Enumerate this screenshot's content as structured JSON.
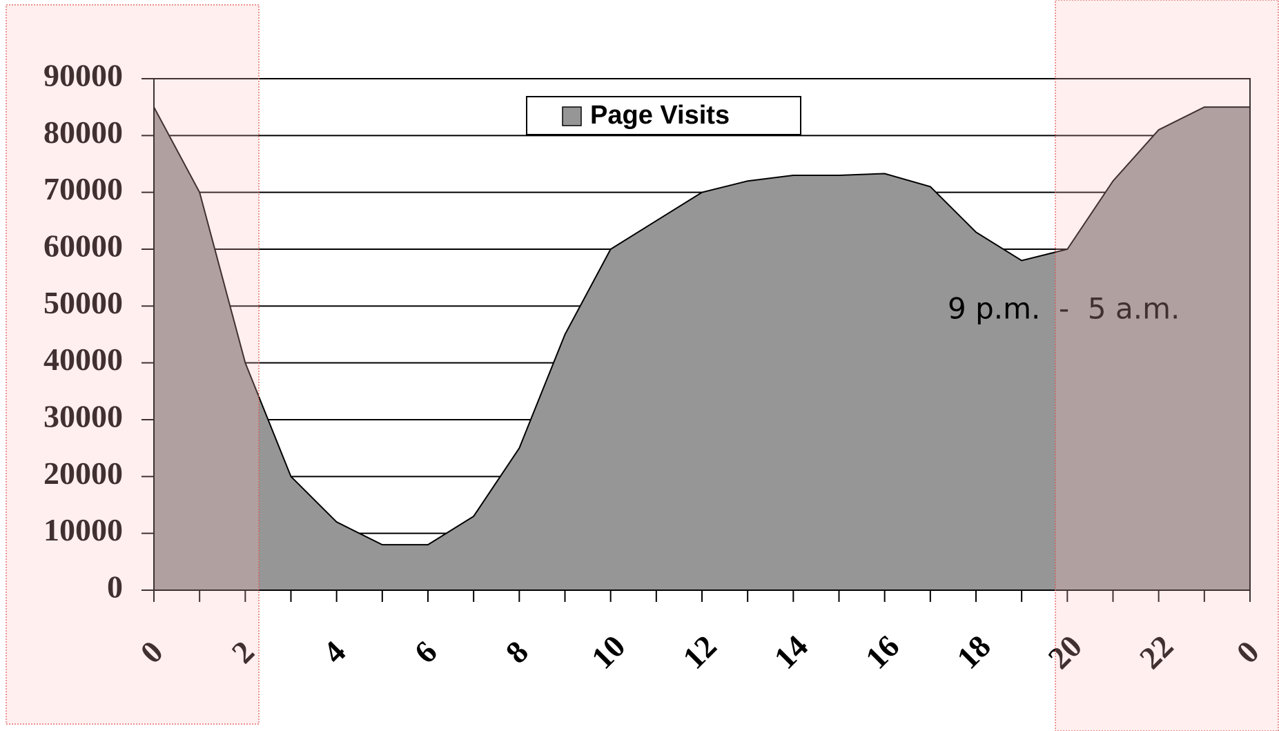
{
  "chart_data": {
    "type": "area",
    "categories": [
      "0",
      null,
      "2",
      null,
      "4",
      null,
      "6",
      null,
      "8",
      null,
      "10",
      null,
      "12",
      null,
      "14",
      null,
      "16",
      null,
      "18",
      null,
      "20",
      null,
      "22",
      null,
      "0"
    ],
    "series": [
      {
        "name": "Page Visits",
        "color": "#969696",
        "values": [
          85000,
          70000,
          40000,
          20000,
          12000,
          8000,
          8000,
          13000,
          25000,
          45000,
          60000,
          65000,
          70000,
          72000,
          73000,
          73000,
          73300,
          71000,
          63000,
          58000,
          60000,
          72000,
          81000,
          85000,
          85000
        ]
      }
    ],
    "ylim": [
      0,
      90000
    ],
    "yticks": [
      0,
      10000,
      20000,
      30000,
      40000,
      50000,
      60000,
      70000,
      80000,
      90000
    ],
    "grid": true,
    "legend": "top",
    "annotations": [
      "9 p.m.  -  5 a.m."
    ]
  }
}
